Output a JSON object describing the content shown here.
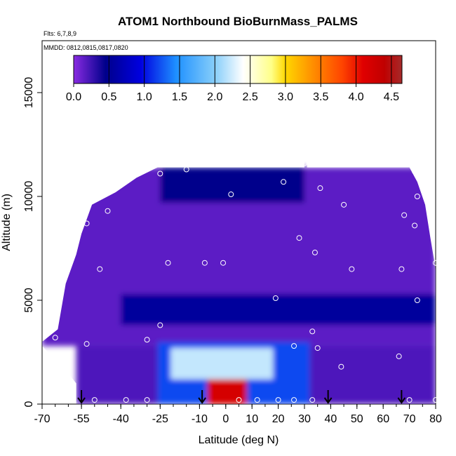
{
  "chart_data": {
    "type": "heatmap",
    "title": "ATOM1 Northbound BioBurnMass_PALMS",
    "flights_note": "Flts: 6,7,8,9",
    "dates_note": "MMDD: 0812,0815,0817,0820",
    "xlabel": "Latitude (deg N)",
    "ylabel": "Altitude (m)",
    "xlim": [
      -70,
      80
    ],
    "ylim": [
      0,
      17500
    ],
    "x_ticks": [
      {
        "value": -70,
        "label": "-70"
      },
      {
        "value": -55,
        "label": "-55"
      },
      {
        "value": -40,
        "label": "-40"
      },
      {
        "value": -25,
        "label": "-25"
      },
      {
        "value": -10,
        "label": "-10"
      },
      {
        "value": 0,
        "label": "0"
      },
      {
        "value": 10,
        "label": "10"
      },
      {
        "value": 20,
        "label": "20"
      },
      {
        "value": 30,
        "label": "30"
      },
      {
        "value": 40,
        "label": "40"
      },
      {
        "value": 50,
        "label": "50"
      },
      {
        "value": 60,
        "label": "60"
      },
      {
        "value": 70,
        "label": "70"
      },
      {
        "value": 80,
        "label": "80"
      }
    ],
    "y_ticks": [
      {
        "value": 0,
        "label": "0"
      },
      {
        "value": 5000,
        "label": "5000"
      },
      {
        "value": 10000,
        "label": "10000"
      },
      {
        "value": 15000,
        "label": "15000"
      }
    ],
    "colorbar": {
      "min": 0,
      "max": 4.65,
      "ticks": [
        {
          "value": 0.0,
          "label": "0.0"
        },
        {
          "value": 0.5,
          "label": "0.5"
        },
        {
          "value": 1.0,
          "label": "1.0"
        },
        {
          "value": 1.5,
          "label": "1.5"
        },
        {
          "value": 2.0,
          "label": "2.0"
        },
        {
          "value": 2.5,
          "label": "2.5"
        },
        {
          "value": 3.0,
          "label": "3.0"
        },
        {
          "value": 3.5,
          "label": "3.5"
        },
        {
          "value": 4.0,
          "label": "4.0"
        },
        {
          "value": 4.5,
          "label": "4.5"
        }
      ],
      "stops": [
        {
          "value": 0.0,
          "color": "#8a2be2"
        },
        {
          "value": 0.45,
          "color": "#00008b"
        },
        {
          "value": 0.95,
          "color": "#0000e0"
        },
        {
          "value": 1.45,
          "color": "#1e90ff"
        },
        {
          "value": 2.0,
          "color": "#87cefa"
        },
        {
          "value": 2.4,
          "color": "#ffffff"
        },
        {
          "value": 2.8,
          "color": "#ffff88"
        },
        {
          "value": 3.0,
          "color": "#ffd700"
        },
        {
          "value": 3.4,
          "color": "#ff8c00"
        },
        {
          "value": 3.8,
          "color": "#ff4500"
        },
        {
          "value": 4.1,
          "color": "#e00000"
        },
        {
          "value": 4.4,
          "color": "#c00000"
        },
        {
          "value": 4.65,
          "color": "#a52a2a"
        }
      ]
    },
    "fields": [
      {
        "feature": "background",
        "value": 0.15,
        "lat_range": [
          -70,
          80
        ],
        "alt_range": [
          2800,
          11400
        ]
      },
      {
        "feature": "lower-background",
        "value": 0.2,
        "lat_range": [
          -57,
          80
        ],
        "alt_range": [
          0,
          2800
        ]
      },
      {
        "feature": "mid-altitude dark band",
        "value": 0.55,
        "lat_range": [
          -40,
          80
        ],
        "alt_range": [
          3800,
          5300
        ]
      },
      {
        "feature": "plume core lower",
        "value": 1.2,
        "lat_range": [
          -26,
          32
        ],
        "alt_range": [
          0,
          3000
        ]
      },
      {
        "feature": "plume layer",
        "value": 2.2,
        "lat_range": [
          -21,
          18
        ],
        "alt_range": [
          1200,
          2700
        ]
      },
      {
        "feature": "plume maximum",
        "value": 4.2,
        "lat_range": [
          -7,
          8
        ],
        "alt_range": [
          0,
          1200
        ]
      },
      {
        "feature": "upper dark patch",
        "value": 0.45,
        "lat_range": [
          -25,
          30
        ],
        "alt_range": [
          9700,
          11400
        ]
      }
    ],
    "sample_points": [
      {
        "lat": -65,
        "alt": 3200
      },
      {
        "lat": -50,
        "alt": 200
      },
      {
        "lat": -53,
        "alt": 2900
      },
      {
        "lat": -48,
        "alt": 6500
      },
      {
        "lat": -53,
        "alt": 8700
      },
      {
        "lat": -45,
        "alt": 9300
      },
      {
        "lat": -38,
        "alt": 200
      },
      {
        "lat": -30,
        "alt": 3100
      },
      {
        "lat": -30,
        "alt": 200
      },
      {
        "lat": -25,
        "alt": 3800
      },
      {
        "lat": -22,
        "alt": 6800
      },
      {
        "lat": -25,
        "alt": 11100
      },
      {
        "lat": -15,
        "alt": 11300
      },
      {
        "lat": -8,
        "alt": 6800
      },
      {
        "lat": -1,
        "alt": 6800
      },
      {
        "lat": 2,
        "alt": 10100
      },
      {
        "lat": 5,
        "alt": 200
      },
      {
        "lat": 12,
        "alt": 200
      },
      {
        "lat": 19,
        "alt": 5100
      },
      {
        "lat": 20,
        "alt": 200
      },
      {
        "lat": 22,
        "alt": 10700
      },
      {
        "lat": 26,
        "alt": 200
      },
      {
        "lat": 26,
        "alt": 2800
      },
      {
        "lat": 28,
        "alt": 8000
      },
      {
        "lat": 30,
        "alt": 11600
      },
      {
        "lat": 33,
        "alt": 200
      },
      {
        "lat": 33,
        "alt": 3500
      },
      {
        "lat": 35,
        "alt": 2700
      },
      {
        "lat": 34,
        "alt": 7300
      },
      {
        "lat": 36,
        "alt": 10400
      },
      {
        "lat": 44,
        "alt": 1800
      },
      {
        "lat": 45,
        "alt": 9600
      },
      {
        "lat": 48,
        "alt": 6500
      },
      {
        "lat": 66,
        "alt": 2300
      },
      {
        "lat": 67,
        "alt": 6500
      },
      {
        "lat": 68,
        "alt": 9100
      },
      {
        "lat": 70,
        "alt": 200
      },
      {
        "lat": 72,
        "alt": 8600
      },
      {
        "lat": 73,
        "alt": 10000
      },
      {
        "lat": 73,
        "alt": 5000
      },
      {
        "lat": 72,
        "alt": 11200
      },
      {
        "lat": 80,
        "alt": 6800
      },
      {
        "lat": 80,
        "alt": 200
      }
    ],
    "arrow_latitudes": [
      -55,
      -9,
      39,
      67
    ]
  }
}
